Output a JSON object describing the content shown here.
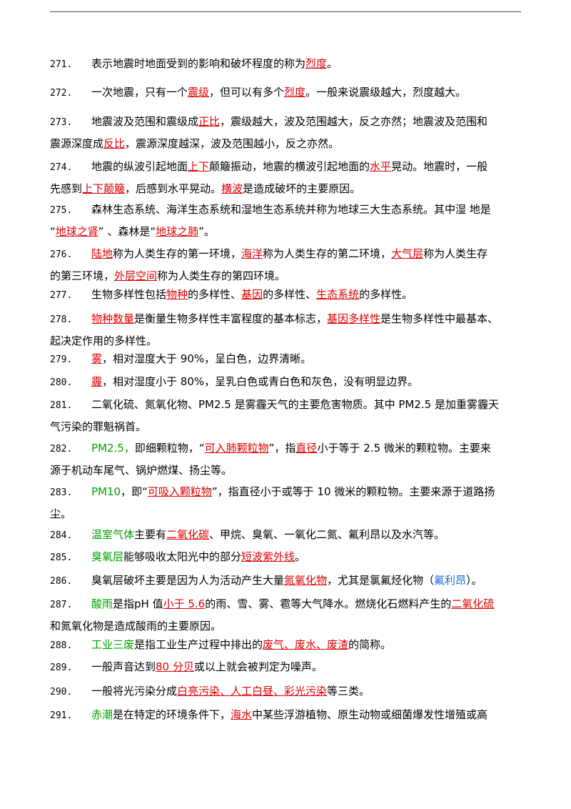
{
  "colors": {
    "red": "#e00000",
    "green": "#00a000",
    "blue": "#1e6ad8"
  },
  "items": [
    {
      "num": "271.",
      "lines": [
        [
          {
            "t": "表示地震时地面受到的影响和破坏程度的称为"
          },
          {
            "t": "烈度",
            "c": "red"
          },
          {
            "t": "。"
          }
        ]
      ]
    },
    {
      "num": "272.",
      "lines": [
        [
          {
            "t": "一次地震，只有一个"
          },
          {
            "t": "震级",
            "c": "red"
          },
          {
            "t": "，但可以有多个"
          },
          {
            "t": "烈度",
            "c": "red"
          },
          {
            "t": "。一般来说震级越大，烈度越大。"
          }
        ]
      ]
    },
    {
      "num": "273.",
      "lines": [
        [
          {
            "t": "地震波及范围和震级成"
          },
          {
            "t": "正比",
            "c": "red"
          },
          {
            "t": "，震级越大，波及范围越大，反之亦然；地震波及范围和"
          }
        ],
        [
          {
            "t": "震源深度成"
          },
          {
            "t": "反比",
            "c": "red"
          },
          {
            "t": "，震源深度越深，波及范围越小，反之亦然。"
          }
        ]
      ]
    },
    {
      "num": "274.",
      "lines": [
        [
          {
            "t": "地震的纵波引起地面"
          },
          {
            "t": "上下",
            "c": "red"
          },
          {
            "t": "颠簸振动，地震的横波引起地面的"
          },
          {
            "t": "水平",
            "c": "red"
          },
          {
            "t": "晃动。地震时，一般"
          }
        ],
        [
          {
            "t": "先感到"
          },
          {
            "t": "上下颠簸",
            "c": "red"
          },
          {
            "t": "，后感到水平晃动。"
          },
          {
            "t": "横波",
            "c": "red"
          },
          {
            "t": "是造成破坏的主要原因。"
          }
        ]
      ]
    },
    {
      "num": "275.",
      "lines": [
        [
          {
            "t": "森林生态系统、海洋生态系统和湿地生态系统并称为地球三大生态系统。其中湿 地是"
          }
        ],
        [
          {
            "t": "“"
          },
          {
            "t": "地球之肾",
            "c": "red"
          },
          {
            "t": "” 、森林是“"
          },
          {
            "t": "地球之肺",
            "c": "red"
          },
          {
            "t": "”。"
          }
        ]
      ]
    },
    {
      "num": "276.",
      "lines": [
        [
          {
            "t": "陆地",
            "c": "red"
          },
          {
            "t": "称为人类生存的第一环境，"
          },
          {
            "t": "海洋",
            "c": "red"
          },
          {
            "t": "称为人类生存的第二环境，"
          },
          {
            "t": "大气层",
            "c": "red"
          },
          {
            "t": "称为人类生存"
          }
        ],
        [
          {
            "t": "的第三环境，"
          },
          {
            "t": "外层空间",
            "c": "red"
          },
          {
            "t": "称为人类生存的第四环境。"
          }
        ]
      ]
    },
    {
      "num": "277.",
      "lines": [
        [
          {
            "t": "生物多样性包括"
          },
          {
            "t": "物种",
            "c": "red"
          },
          {
            "t": "的多样性、"
          },
          {
            "t": "基因",
            "c": "red"
          },
          {
            "t": "的多样性、"
          },
          {
            "t": "生态系统",
            "c": "red"
          },
          {
            "t": "的多样性。"
          }
        ]
      ]
    },
    {
      "num": "278.",
      "lines": [
        [
          {
            "t": "物种数量",
            "c": "red"
          },
          {
            "t": "是衡量生物多样性丰富程度的基本标志，"
          },
          {
            "t": "基因多样性",
            "c": "red"
          },
          {
            "t": "是生物多样性中最基本、"
          }
        ],
        [
          {
            "t": "起决定作用的多样性。"
          }
        ]
      ]
    },
    {
      "num": "279.",
      "lines": [
        [
          {
            "t": "雾",
            "c": "red"
          },
          {
            "t": "，相对湿度大于 90%，呈白色，边界清晰。"
          }
        ]
      ]
    },
    {
      "num": "280.",
      "lines": [
        [
          {
            "t": "霾",
            "c": "red"
          },
          {
            "t": "，相对湿度小于 80%，呈乳白色或青白色和灰色，没有明显边界。"
          }
        ]
      ]
    },
    {
      "num": "281.",
      "lines": [
        [
          {
            "t": "二氧化硫、氮氧化物、PM2.5 是雾霾天气的主要危害物质。其中 PM2.5 是加重雾霾天"
          }
        ],
        [
          {
            "t": "气污染的罪魁祸首。"
          }
        ]
      ]
    },
    {
      "num": "282.",
      "lines": [
        [
          {
            "t": "PM2.5，",
            "c": "green"
          },
          {
            "t": "即细颗粒物，“"
          },
          {
            "t": "可入肺颗粒物",
            "c": "red"
          },
          {
            "t": "”，指"
          },
          {
            "t": "直径",
            "c": "red"
          },
          {
            "t": "小于等于 2.5 微米的颗粒物。主要来"
          }
        ],
        [
          {
            "t": "源于机动车尾气、锅炉燃煤、扬尘等。"
          }
        ]
      ]
    },
    {
      "num": "283.",
      "lines": [
        [
          {
            "t": "PM10",
            "c": "green"
          },
          {
            "t": "，即“"
          },
          {
            "t": "可吸入颗粒物",
            "c": "red"
          },
          {
            "t": "”，指直径小于或等于 10 微米的颗粒物。主要来源于道路扬"
          }
        ],
        [
          {
            "t": "尘。"
          }
        ]
      ]
    },
    {
      "num": "284.",
      "lines": [
        [
          {
            "t": "温室气体",
            "c": "green"
          },
          {
            "t": "主要有"
          },
          {
            "t": "二氧化碳",
            "c": "red"
          },
          {
            "t": "、甲烷、臭氧、一氧化二氮、氟利昂以及水汽等。"
          }
        ]
      ]
    },
    {
      "num": "285.",
      "lines": [
        [
          {
            "t": "臭氧层",
            "c": "green"
          },
          {
            "t": "能够吸收太阳光中的部分"
          },
          {
            "t": "短波紫外线",
            "c": "red"
          },
          {
            "t": "。"
          }
        ]
      ]
    },
    {
      "num": "286.",
      "lines": [
        [
          {
            "t": "臭氧层破坏主要是因为人为活动产生大量"
          },
          {
            "t": "氮氧化物",
            "c": "red"
          },
          {
            "t": "，尤其是氯氟烃化物（"
          },
          {
            "t": "氟利昂",
            "c": "blue"
          },
          {
            "t": "）。"
          }
        ]
      ]
    },
    {
      "num": "287.",
      "lines": [
        [
          {
            "t": "酸雨",
            "c": "green"
          },
          {
            "t": "是指pH 值"
          },
          {
            "t": "小于 5.6",
            "c": "red"
          },
          {
            "t": "的雨、雪、雾、雹等大气降水。燃烧化石燃料产生的"
          },
          {
            "t": "二氧化硫",
            "c": "red"
          }
        ],
        [
          {
            "t": "和氮氧化物是造成酸雨的主要原因。"
          }
        ]
      ]
    },
    {
      "num": "288.",
      "lines": [
        [
          {
            "t": "工业三废",
            "c": "green"
          },
          {
            "t": "是指工业生产过程中排出的"
          },
          {
            "t": "废气、废水、废渣",
            "c": "red"
          },
          {
            "t": "的简称。"
          }
        ]
      ]
    },
    {
      "num": "289.",
      "lines": [
        [
          {
            "t": "一般声音达到"
          },
          {
            "t": "80 分贝",
            "c": "red"
          },
          {
            "t": "或以上就会被判定为噪声。"
          }
        ]
      ]
    },
    {
      "num": "290.",
      "lines": [
        [
          {
            "t": "一般将光污染分成"
          },
          {
            "t": "白亮污染、人工白昼、彩光污染",
            "c": "red"
          },
          {
            "t": "等三类。"
          }
        ]
      ]
    },
    {
      "num": "291.",
      "lines": [
        [
          {
            "t": "赤潮",
            "c": "green"
          },
          {
            "t": "是在特定的环境条件下，"
          },
          {
            "t": "海水",
            "c": "red"
          },
          {
            "t": "中某些浮游植物、原生动物或细菌爆发性增殖或高"
          }
        ]
      ]
    }
  ]
}
